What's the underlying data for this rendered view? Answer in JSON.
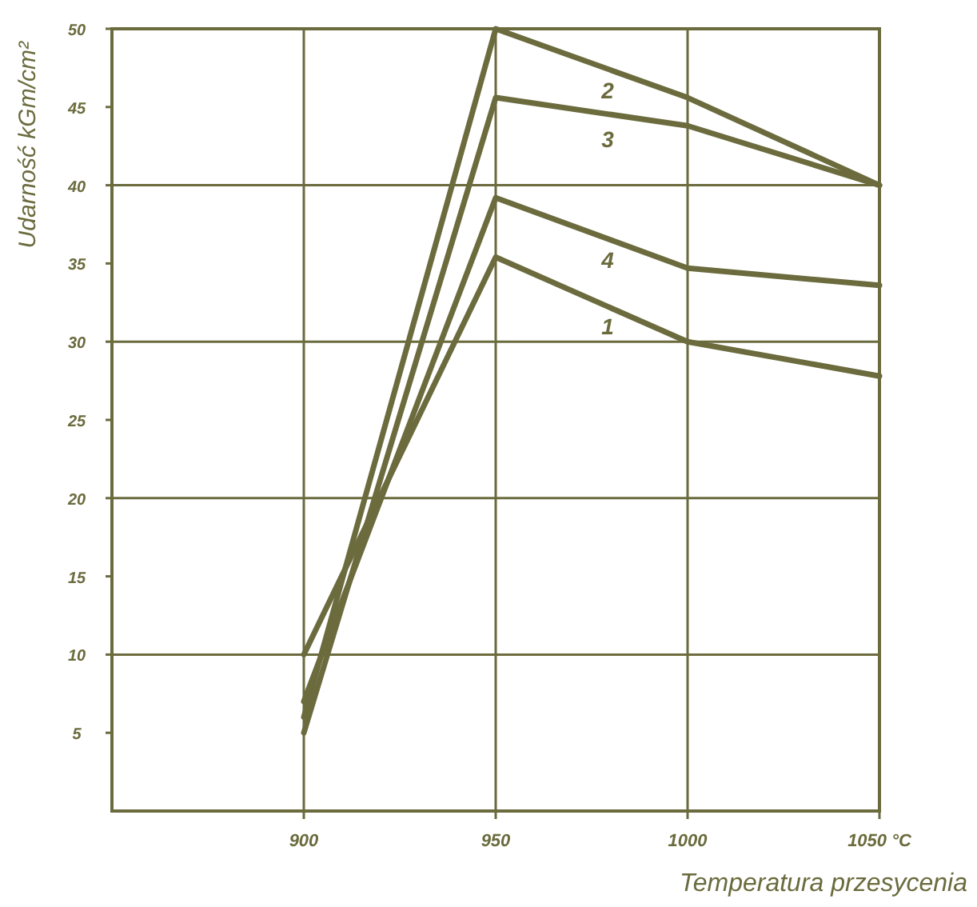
{
  "chart_data": {
    "type": "line",
    "xlabel": "Temperatura przesycenia",
    "ylabel": "Udarność kGm/cm²",
    "x": [
      900,
      950,
      1000,
      1050
    ],
    "series": [
      {
        "name": "1",
        "color": "#6b6b3e",
        "values": [
          10,
          35.4,
          30,
          27.8
        ]
      },
      {
        "name": "2",
        "color": "#6b6b3e",
        "values": [
          6,
          50,
          45.6,
          40
        ]
      },
      {
        "name": "3",
        "color": "#6b6b3e",
        "values": [
          5,
          45.6,
          43.8,
          40
        ]
      },
      {
        "name": "4",
        "color": "#6b6b3e",
        "values": [
          7,
          39.2,
          34.7,
          33.6
        ]
      }
    ],
    "xlim": [
      850,
      1050
    ],
    "xticks": [
      900,
      950,
      1000,
      {
        "value": 1050,
        "label": "1050 °C"
      }
    ],
    "ylim": [
      0,
      50
    ],
    "yticks": [
      5,
      10,
      15,
      20,
      25,
      30,
      35,
      40,
      45,
      50
    ],
    "grid": true,
    "marker": "none",
    "line_style": "solid"
  }
}
